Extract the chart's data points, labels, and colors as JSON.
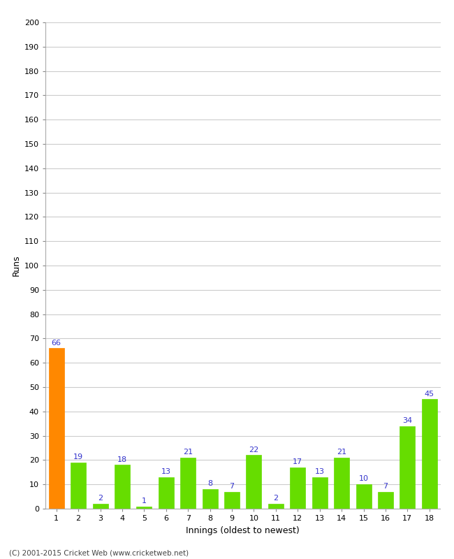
{
  "values": [
    66,
    19,
    2,
    18,
    1,
    13,
    21,
    8,
    7,
    22,
    2,
    17,
    13,
    21,
    10,
    7,
    34,
    45
  ],
  "categories": [
    1,
    2,
    3,
    4,
    5,
    6,
    7,
    8,
    9,
    10,
    11,
    12,
    13,
    14,
    15,
    16,
    17,
    18
  ],
  "bar_colors": [
    "#ff8800",
    "#66dd00",
    "#66dd00",
    "#66dd00",
    "#66dd00",
    "#66dd00",
    "#66dd00",
    "#66dd00",
    "#66dd00",
    "#66dd00",
    "#66dd00",
    "#66dd00",
    "#66dd00",
    "#66dd00",
    "#66dd00",
    "#66dd00",
    "#66dd00",
    "#66dd00"
  ],
  "ylabel": "Runs",
  "xlabel": "Innings (oldest to newest)",
  "ylim": [
    0,
    200
  ],
  "yticks": [
    0,
    10,
    20,
    30,
    40,
    50,
    60,
    70,
    80,
    90,
    100,
    110,
    120,
    130,
    140,
    150,
    160,
    170,
    180,
    190,
    200
  ],
  "copyright": "(C) 2001-2015 Cricket Web (www.cricketweb.net)",
  "label_color": "#3333cc",
  "label_fontsize": 8,
  "bar_width": 0.7,
  "background_color": "#ffffff",
  "grid_color": "#cccccc",
  "tick_fontsize": 8,
  "axis_label_fontsize": 9
}
